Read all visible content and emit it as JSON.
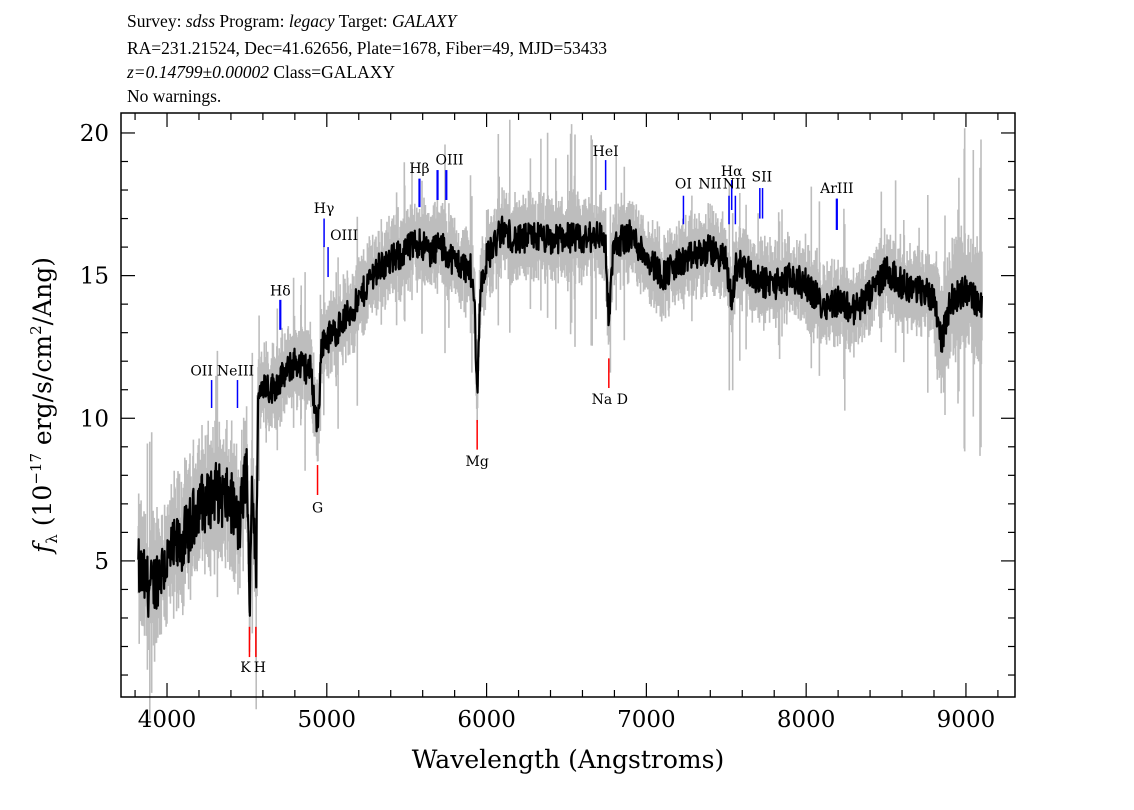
{
  "header": {
    "line1": {
      "survey_label": "Survey:",
      "survey": "sdss",
      "program_label": "Program:",
      "program": "legacy",
      "target_label": "Target:",
      "target": "GALAXY"
    },
    "line2": "RA=231.21524, Dec=41.62656, Plate=1678, Fiber=49, MJD=53433",
    "line3": {
      "redshift": "z=0.14799±0.00002",
      "class": "Class=GALAXY"
    },
    "line4": "No warnings."
  },
  "chart_data": {
    "type": "line",
    "xlabel": "Wavelength (Angstroms)",
    "ylabel": {
      "f": "f",
      "sub": "λ",
      "pre": " (10",
      "exp": "−17",
      "mid": " erg/s/cm",
      "exp2": "2",
      "post": "/Ang)"
    },
    "xlim": [
      3712,
      9307
    ],
    "ylim": [
      0.23,
      20.7
    ],
    "xticks": [
      4000,
      5000,
      6000,
      7000,
      8000,
      9000
    ],
    "yticks": [
      5,
      10,
      15,
      20
    ],
    "grid": false,
    "colors": {
      "flux": "#000000",
      "error_band": "#bdbdbd",
      "emission": "#0000ff",
      "absorption": "#ff0000"
    },
    "series": [
      {
        "x": [
          3820,
          3860,
          3900,
          3950,
          4000,
          4050,
          4100,
          4150,
          4200,
          4250,
          4300,
          4350,
          4400,
          4450,
          4480,
          4500,
          4516,
          4530,
          4545,
          4556,
          4570,
          4600,
          4650,
          4700,
          4750,
          4800,
          4850,
          4900,
          4942,
          4970,
          5050,
          5100,
          5200,
          5300,
          5400,
          5500,
          5580,
          5650,
          5700,
          5800,
          5900,
          5925,
          5941,
          5960,
          6000,
          6100,
          6200,
          6300,
          6400,
          6500,
          6600,
          6700,
          6745,
          6765,
          6790,
          6850,
          6900,
          7000,
          7100,
          7200,
          7300,
          7400,
          7500,
          7534,
          7560,
          7600,
          7700,
          7800,
          7900,
          8000,
          8100,
          8200,
          8300,
          8400,
          8500,
          8600,
          8700,
          8800,
          8850,
          8900,
          9000,
          9050,
          9100
        ],
        "y": [
          4.7,
          4.3,
          4.0,
          4.6,
          5.0,
          5.4,
          5.7,
          6.2,
          7.1,
          7.0,
          7.5,
          7.2,
          7.1,
          6.1,
          7.5,
          8.5,
          3.1,
          8.0,
          6.5,
          4.0,
          10.6,
          11.3,
          11.0,
          11.3,
          11.6,
          12.0,
          11.8,
          11.7,
          9.6,
          12.7,
          13.0,
          13.4,
          14.1,
          15.2,
          15.5,
          15.9,
          16.2,
          15.8,
          16.1,
          15.5,
          15.2,
          14.0,
          10.8,
          14.5,
          15.6,
          16.6,
          16.2,
          16.4,
          16.2,
          16.4,
          16.2,
          16.5,
          16.1,
          13.1,
          15.9,
          16.3,
          16.4,
          15.7,
          15.0,
          15.4,
          15.7,
          15.9,
          15.5,
          14.0,
          15.3,
          15.4,
          14.8,
          14.7,
          14.9,
          14.7,
          14.0,
          14.1,
          13.8,
          14.3,
          15.2,
          14.7,
          14.5,
          14.3,
          12.7,
          14.1,
          14.5,
          14.2,
          13.8
        ]
      }
    ],
    "lines": [
      {
        "label": "OII",
        "wave": 4279,
        "kind": "emission",
        "tick": [
          10.36,
          11.34
        ],
        "label_y": 11.5
      },
      {
        "label": "NeIII",
        "wave": 4441,
        "kind": "emission",
        "tick": [
          10.36,
          11.34
        ],
        "label_y": 11.5
      },
      {
        "label": "K",
        "wave": 4516,
        "kind": "absorption",
        "tick": [
          1.63,
          2.69
        ],
        "label_y": 1.1
      },
      {
        "label": "H",
        "wave": 4556,
        "kind": "absorption",
        "tick": [
          1.63,
          2.69
        ],
        "label_y": 1.1
      },
      {
        "label": "Hδ",
        "wave": 4709,
        "kind": "emission",
        "tick": [
          13.1,
          14.15
        ],
        "label_y": 14.3
      },
      {
        "label": "G",
        "wave": 4942,
        "kind": "absorption",
        "tick": [
          7.31,
          8.36
        ],
        "label_y": 6.7
      },
      {
        "label": "Hγ",
        "wave": 4983,
        "kind": "emission",
        "tick": [
          16.0,
          17.0
        ],
        "label_y": 17.2
      },
      {
        "label": "OIII",
        "wave": 5008,
        "kind": "emission",
        "tick": [
          14.95,
          16.0
        ],
        "label_y": 16.25
      },
      {
        "label": "Hβ",
        "wave": 5580,
        "kind": "emission",
        "tick": [
          17.4,
          18.4
        ],
        "label_y": 18.6
      },
      {
        "label": "OIII",
        "wave": 5693,
        "kind": "emission",
        "tick": [
          17.65,
          18.7
        ],
        "label_y": 18.9
      },
      {
        "label": "",
        "wave": 5748,
        "kind": "emission",
        "tick": [
          17.65,
          18.7
        ],
        "label_y": 18.9
      },
      {
        "label": "Mg",
        "wave": 5941,
        "kind": "absorption",
        "tick": [
          8.9,
          9.94
        ],
        "label_y": 8.33
      },
      {
        "label": "HeI",
        "wave": 6745,
        "kind": "emission",
        "tick": [
          18.0,
          19.05
        ],
        "label_y": 19.2
      },
      {
        "label": "Na D",
        "wave": 6765,
        "kind": "absorption",
        "tick": [
          11.06,
          12.1
        ],
        "label_y": 10.5
      },
      {
        "label": "OI",
        "wave": 7232,
        "kind": "emission",
        "tick": [
          16.8,
          17.8
        ],
        "label_y": 18.05
      },
      {
        "label": "NII",
        "wave": 7517,
        "kind": "emission",
        "tick": [
          16.8,
          17.8
        ],
        "label_y": 18.05
      },
      {
        "label": "Hα",
        "wave": 7534,
        "kind": "emission",
        "tick": [
          17.3,
          18.35
        ],
        "label_y": 18.5
      },
      {
        "label": "NII",
        "wave": 7557,
        "kind": "emission",
        "tick": [
          16.8,
          17.8
        ],
        "label_y": 18.05
      },
      {
        "label": "SII",
        "wave": 7710,
        "kind": "emission",
        "tick": [
          17.0,
          18.07
        ],
        "label_y": 18.3
      },
      {
        "label": "",
        "wave": 7727,
        "kind": "emission",
        "tick": [
          17.0,
          18.07
        ],
        "label_y": 18.3
      },
      {
        "label": "ArIII",
        "wave": 8192,
        "kind": "emission",
        "tick": [
          16.6,
          17.7
        ],
        "label_y": 17.9
      }
    ]
  }
}
